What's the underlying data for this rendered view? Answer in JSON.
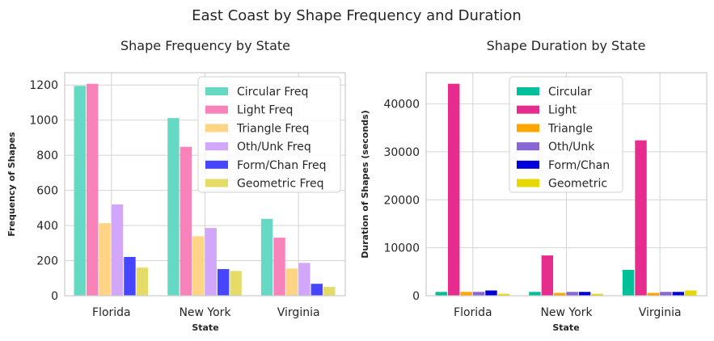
{
  "figure": {
    "title": "East Coast by Shape Frequency and Duration"
  },
  "chart_data": [
    {
      "type": "bar",
      "title": "Shape Frequency by State",
      "xlabel": "State",
      "ylabel": "Frequency of Shapes",
      "ylim": [
        0,
        1270
      ],
      "yticks": [
        0,
        200,
        400,
        600,
        800,
        1000,
        1200
      ],
      "categories": [
        "Florida",
        "New York",
        "Virginia"
      ],
      "grid": true,
      "legend_position": "top-right",
      "series": [
        {
          "name": "Circular Freq",
          "color": "#66d9c4",
          "values": [
            1195,
            1012,
            438
          ]
        },
        {
          "name": "Light Freq",
          "color": "#f883bb",
          "values": [
            1207,
            848,
            331
          ]
        },
        {
          "name": "Triangle Freq",
          "color": "#ffd585",
          "values": [
            413,
            339,
            155
          ]
        },
        {
          "name": "Oth/Unk Freq",
          "color": "#d2a6fb",
          "values": [
            520,
            386,
            187
          ]
        },
        {
          "name": "Form/Chan Freq",
          "color": "#4646ff",
          "values": [
            221,
            152,
            68
          ]
        },
        {
          "name": "Geometric Freq",
          "color": "#e4dc66",
          "values": [
            160,
            141,
            50
          ]
        }
      ]
    },
    {
      "type": "bar",
      "title": "Shape Duration by State",
      "xlabel": "State",
      "ylabel": "Duration of Shapes (seconds)",
      "ylim": [
        0,
        46500
      ],
      "yticks": [
        0,
        10000,
        20000,
        30000,
        40000
      ],
      "categories": [
        "Florida",
        "New York",
        "Virginia"
      ],
      "grid": true,
      "legend_position": "top-center",
      "series": [
        {
          "name": "Circular",
          "color": "#00c09a",
          "values": [
            800,
            800,
            5400
          ]
        },
        {
          "name": "Light",
          "color": "#e62c8c",
          "values": [
            44200,
            8400,
            32400
          ]
        },
        {
          "name": "Triangle",
          "color": "#ffa500",
          "values": [
            800,
            600,
            600
          ]
        },
        {
          "name": "Oth/Unk",
          "color": "#8866d4",
          "values": [
            800,
            800,
            800
          ]
        },
        {
          "name": "Form/Chan",
          "color": "#0000d8",
          "values": [
            1100,
            800,
            800
          ]
        },
        {
          "name": "Geometric",
          "color": "#e6d800",
          "values": [
            400,
            400,
            1100
          ]
        }
      ]
    }
  ]
}
